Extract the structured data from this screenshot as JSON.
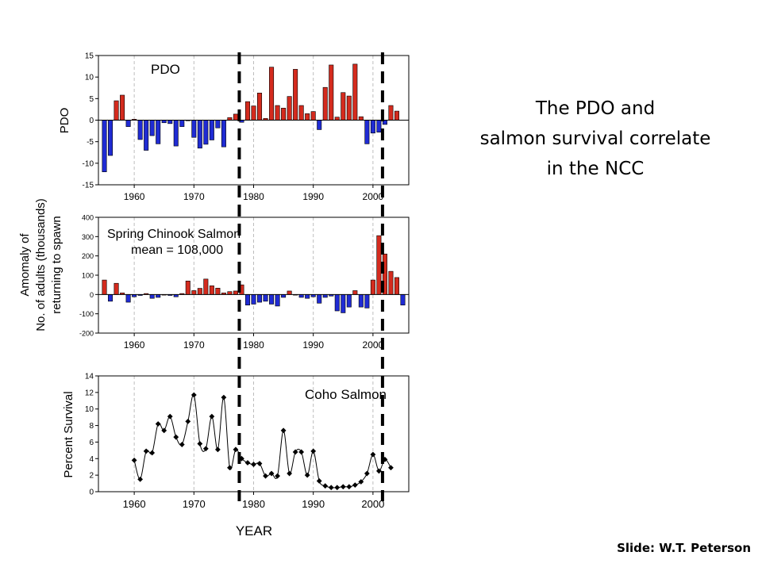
{
  "slide": {
    "title_lines": [
      "The PDO and",
      "salmon survival correlate",
      "in the NCC"
    ],
    "credit": "Slide: W.T. Peterson",
    "x_axis_title": "YEAR",
    "colors": {
      "positive": "#d42b1e",
      "negative": "#1f2bd4",
      "line": "#000000",
      "grid": "#bdbdbd"
    }
  },
  "chart_data": [
    {
      "type": "bar",
      "id": "pdo",
      "title": "PDO",
      "ylabel": "PDO",
      "ylim": [
        -15,
        15
      ],
      "yticks": [
        -15,
        -10,
        -5,
        0,
        5,
        10,
        15
      ],
      "xlim": [
        1954,
        2006
      ],
      "xticks": [
        1960,
        1970,
        1980,
        1990,
        2000
      ],
      "x": [
        1955,
        1956,
        1957,
        1958,
        1959,
        1960,
        1961,
        1962,
        1963,
        1964,
        1965,
        1966,
        1967,
        1968,
        1969,
        1970,
        1971,
        1972,
        1973,
        1974,
        1975,
        1976,
        1977,
        1978,
        1979,
        1980,
        1981,
        1982,
        1983,
        1984,
        1985,
        1986,
        1987,
        1988,
        1989,
        1990,
        1991,
        1992,
        1993,
        1994,
        1995,
        1996,
        1997,
        1998,
        1999,
        2000,
        2001,
        2002,
        2003,
        2004
      ],
      "values": [
        -12,
        -8.2,
        4.5,
        5.8,
        -1.5,
        0.2,
        -4.5,
        -7,
        -3.6,
        -5.5,
        -0.6,
        -0.8,
        -6,
        -1.5,
        0,
        -4,
        -6.5,
        -5.6,
        -4.6,
        -1.8,
        -6.2,
        0.6,
        1.4,
        -0.5,
        4.3,
        3.3,
        6.3,
        0.4,
        12.3,
        3.4,
        2.8,
        5.5,
        11.8,
        3.4,
        1.5,
        2,
        -2.2,
        7.6,
        12.8,
        0.7,
        6.4,
        5.6,
        13,
        0.8,
        -5.5,
        -3,
        -2.8,
        -1,
        3.4,
        2.1
      ]
    },
    {
      "type": "bar",
      "id": "chinook",
      "title": "Spring Chinook Salmon",
      "subtitle": "mean = 108,000",
      "ylabel": [
        "Amomaly of",
        "No. of adults (thousands)",
        "returning to spawn"
      ],
      "ylim": [
        -200,
        400
      ],
      "yticks": [
        -200,
        -100,
        0,
        100,
        200,
        300,
        400
      ],
      "xlim": [
        1954,
        2006
      ],
      "xticks": [
        1960,
        1970,
        1980,
        1990,
        2000
      ],
      "x": [
        1955,
        1956,
        1957,
        1958,
        1959,
        1960,
        1961,
        1962,
        1963,
        1964,
        1965,
        1966,
        1967,
        1968,
        1969,
        1970,
        1971,
        1972,
        1973,
        1974,
        1975,
        1976,
        1977,
        1978,
        1979,
        1980,
        1981,
        1982,
        1983,
        1984,
        1985,
        1986,
        1987,
        1988,
        1989,
        1990,
        1991,
        1992,
        1993,
        1994,
        1995,
        1996,
        1997,
        1998,
        1999,
        2000,
        2001,
        2002,
        2003,
        2004,
        2005
      ],
      "values": [
        75,
        -35,
        58,
        8,
        -40,
        -12,
        -5,
        5,
        -20,
        -15,
        0,
        -5,
        -12,
        5,
        70,
        20,
        32,
        80,
        45,
        33,
        8,
        15,
        18,
        50,
        -55,
        -50,
        -40,
        -35,
        -50,
        -60,
        -15,
        18,
        0,
        -15,
        -20,
        -12,
        -45,
        -15,
        -8,
        -85,
        -95,
        -65,
        20,
        -65,
        -70,
        75,
        305,
        210,
        120,
        88,
        -55
      ]
    },
    {
      "type": "line",
      "id": "coho",
      "title": "Coho Salmon",
      "ylabel": "Percent Survival",
      "xlabel": "YEAR",
      "ylim": [
        0,
        14
      ],
      "yticks": [
        0,
        2,
        4,
        6,
        8,
        10,
        12,
        14
      ],
      "xlim": [
        1954,
        2006
      ],
      "xticks": [
        1960,
        1970,
        1980,
        1990,
        2000
      ],
      "x": [
        1960,
        1961,
        1962,
        1963,
        1964,
        1965,
        1966,
        1967,
        1968,
        1969,
        1970,
        1971,
        1972,
        1973,
        1974,
        1975,
        1976,
        1977,
        1978,
        1979,
        1980,
        1981,
        1982,
        1983,
        1984,
        1985,
        1986,
        1987,
        1988,
        1989,
        1990,
        1991,
        1992,
        1993,
        1994,
        1995,
        1996,
        1997,
        1998,
        1999,
        2000,
        2001,
        2002,
        2003
      ],
      "values": [
        3.8,
        1.5,
        4.9,
        4.7,
        8.2,
        7.4,
        9.1,
        6.6,
        5.7,
        8.5,
        11.7,
        5.8,
        5.2,
        9.1,
        5.1,
        11.4,
        2.9,
        5.1,
        4,
        3.5,
        3.3,
        3.4,
        1.9,
        2.2,
        1.9,
        7.4,
        2.2,
        4.8,
        4.8,
        2,
        4.9,
        1.3,
        0.7,
        0.5,
        0.5,
        0.6,
        0.6,
        0.8,
        1.2,
        2.2,
        4.5,
        2.5,
        3.9,
        2.9
      ]
    }
  ],
  "regime_shift_years": [
    1977.6,
    2001.6
  ]
}
